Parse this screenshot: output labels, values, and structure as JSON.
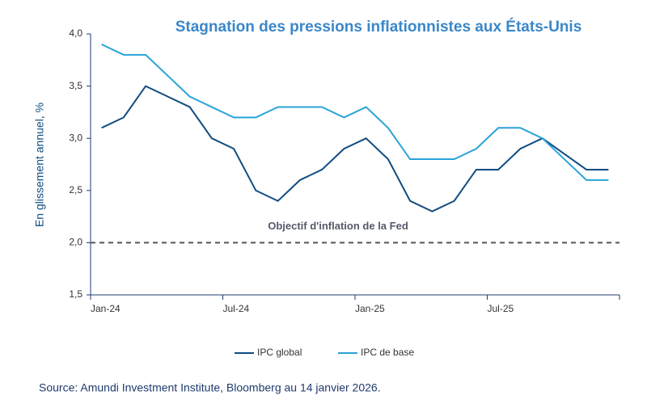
{
  "chart_data": {
    "type": "line",
    "title": "Stagnation des pressions inflationnistes aux États-Unis",
    "y_label": "En glissement annuel, %",
    "source": "Source: Amundi Investment Institute, Bloomberg au 14 janvier 2026.",
    "categories": [
      "Jan-24",
      null,
      null,
      null,
      null,
      null,
      "Jul-24",
      null,
      null,
      null,
      null,
      null,
      "Jan-25",
      null,
      null,
      null,
      null,
      null,
      "Jul-25",
      null,
      null,
      null,
      null,
      null
    ],
    "series": [
      {
        "name": "IPC global",
        "color": "#0f4c81",
        "values": [
          3.1,
          3.2,
          3.5,
          3.4,
          3.3,
          3.0,
          2.9,
          2.5,
          2.4,
          2.6,
          2.7,
          2.9,
          3.0,
          2.8,
          2.4,
          2.3,
          2.4,
          2.7,
          2.7,
          2.9,
          3.0,
          2.85,
          2.7,
          2.7
        ]
      },
      {
        "name": "IPC de base",
        "color": "#29a3d9",
        "values": [
          3.9,
          3.8,
          3.8,
          3.6,
          3.4,
          3.3,
          3.2,
          3.2,
          3.3,
          3.3,
          3.3,
          3.2,
          3.3,
          3.1,
          2.8,
          2.8,
          2.8,
          2.9,
          3.1,
          3.1,
          3.0,
          2.8,
          2.6,
          2.6
        ]
      }
    ],
    "ylim": [
      1.5,
      4.0
    ],
    "yticks": [
      {
        "value": 1.5,
        "label": "1,5"
      },
      {
        "value": 2.0,
        "label": "2,0"
      },
      {
        "value": 2.5,
        "label": "2,5"
      },
      {
        "value": 3.0,
        "label": "3,0"
      },
      {
        "value": 3.5,
        "label": "3,5"
      },
      {
        "value": 4.0,
        "label": "4,0"
      }
    ],
    "reference_line": {
      "value": 2.0,
      "label": "Objectif d'inflation de la Fed",
      "color": "#555555"
    },
    "legend": "bottom"
  }
}
